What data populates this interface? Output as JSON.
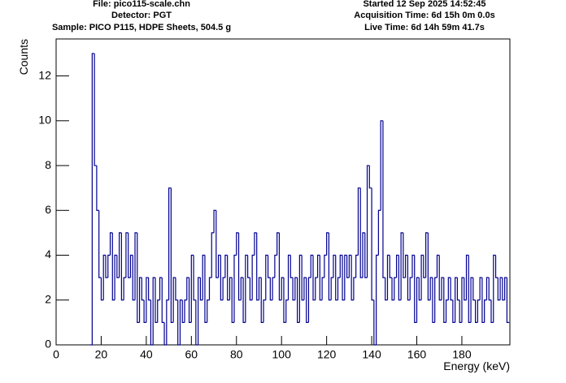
{
  "chart_data": {
    "type": "histogram",
    "info_left": [
      "File: pico115-scale.chn",
      "Detector: PGT",
      "Sample: PICO P115, HDPE Sheets, 504.5 g"
    ],
    "info_right": [
      "Started 12 Sep 2025 14:52:45",
      "Acquisition Time: 6d 15h 0m 0.0s",
      "Live Time: 6d 14h 59m 41.7s"
    ],
    "x_label": "Energy (keV)",
    "y_label": "Counts",
    "color": "#000090",
    "xlim": [
      0,
      201.3
    ],
    "ylim": [
      0,
      13.65
    ],
    "xticks": [
      0,
      20,
      40,
      60,
      80,
      100,
      120,
      140,
      160,
      180
    ],
    "yticks": [
      0,
      2,
      4,
      6,
      8,
      10,
      12
    ],
    "bins": [
      15,
      16,
      17,
      18,
      19,
      20,
      21,
      22,
      23,
      24,
      25,
      26,
      27,
      28,
      29,
      30,
      31,
      32,
      33,
      34,
      35,
      36,
      37,
      38,
      39,
      40,
      41,
      42,
      43,
      44,
      45,
      46,
      47,
      48,
      49,
      50,
      51,
      52,
      53,
      54,
      55,
      56,
      57,
      58,
      59,
      60,
      61,
      62,
      63,
      64,
      65,
      66,
      67,
      68,
      69,
      70,
      71,
      72,
      73,
      74,
      75,
      76,
      77,
      78,
      79,
      80,
      81,
      82,
      83,
      84,
      85,
      86,
      87,
      88,
      89,
      90,
      91,
      92,
      93,
      94,
      95,
      96,
      97,
      98,
      99,
      100,
      101,
      102,
      103,
      104,
      105,
      106,
      107,
      108,
      109,
      110,
      111,
      112,
      113,
      114,
      115,
      116,
      117,
      118,
      119,
      120,
      121,
      122,
      123,
      124,
      125,
      126,
      127,
      128,
      129,
      130,
      131,
      132,
      133,
      134,
      135,
      136,
      137,
      138,
      139,
      140,
      141,
      142,
      143,
      144,
      145,
      146,
      147,
      148,
      149,
      150,
      151,
      152,
      153,
      154,
      155,
      156,
      157,
      158,
      159,
      160,
      161,
      162,
      163,
      164,
      165,
      166,
      167,
      168,
      169,
      170,
      171,
      172,
      173,
      174,
      175,
      176,
      177,
      178,
      179,
      180,
      181,
      182,
      183,
      184,
      185,
      186,
      187,
      188,
      189,
      190,
      191,
      192,
      193,
      194,
      195,
      196,
      197,
      198,
      199,
      200,
      201
    ],
    "counts": [
      0,
      13,
      8,
      6,
      3,
      2,
      4,
      3,
      4,
      5,
      2,
      4,
      3,
      5,
      2,
      3,
      5,
      3,
      4,
      2,
      5,
      1,
      3,
      2,
      1,
      3,
      2,
      0,
      3,
      1,
      2,
      3,
      1,
      0,
      2,
      7,
      1,
      3,
      2,
      0,
      2,
      1,
      2,
      3,
      1,
      4,
      2,
      0,
      3,
      2,
      4,
      1,
      2,
      3,
      5,
      6,
      3,
      4,
      2,
      3,
      4,
      2,
      3,
      1,
      4,
      5,
      2,
      3,
      1,
      4,
      3,
      2,
      4,
      5,
      2,
      3,
      1,
      2,
      4,
      3,
      2,
      3,
      4,
      5,
      2,
      3,
      1,
      2,
      4,
      3,
      2,
      3,
      1,
      4,
      2,
      3,
      1,
      3,
      4,
      2,
      3,
      4,
      2,
      3,
      4,
      5,
      2,
      3,
      4,
      2,
      3,
      4,
      2,
      4,
      3,
      4,
      2,
      3,
      4,
      7,
      3,
      5,
      3,
      8,
      7,
      2,
      0,
      4,
      6,
      10,
      3,
      2,
      4,
      3,
      2,
      3,
      4,
      2,
      5,
      3,
      4,
      2,
      3,
      4,
      1,
      3,
      2,
      4,
      3,
      5,
      2,
      3,
      1,
      3,
      4,
      2,
      3,
      1,
      2,
      3,
      2,
      1,
      3,
      2,
      1,
      3,
      2,
      4,
      1,
      3,
      2,
      1,
      2,
      3,
      1,
      2,
      3,
      2,
      1,
      4,
      3,
      2,
      3,
      2,
      3,
      1
    ]
  }
}
